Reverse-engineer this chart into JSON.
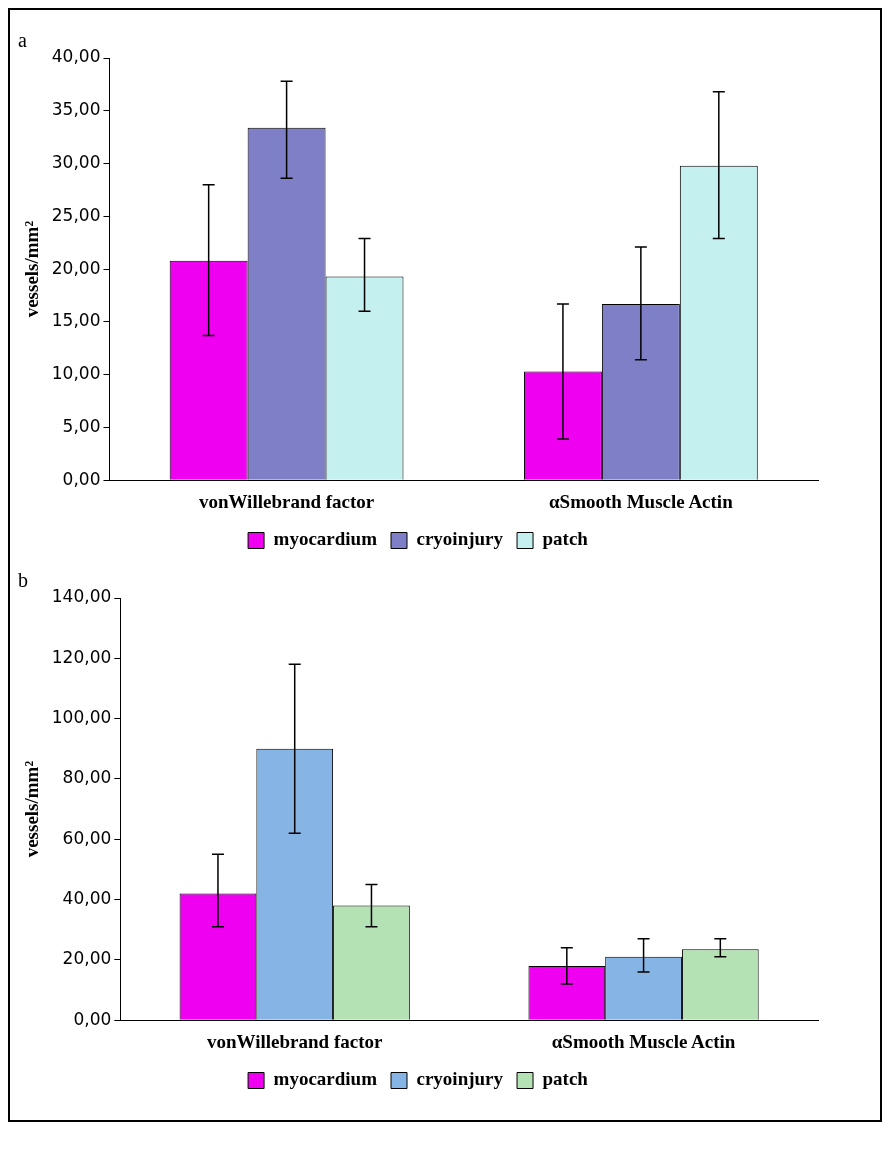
{
  "chart_data": [
    {
      "type": "bar",
      "title": "a",
      "ylabel": "vessels/mm²",
      "categories": [
        "vonWillebrand factor",
        "αSmooth Muscle Actin"
      ],
      "series": [
        {
          "name": "myocardium",
          "color": "#f000f0",
          "values": [
            20.8,
            10.3
          ],
          "errors": [
            [
              13.7,
              28.0
            ],
            [
              3.9,
              16.7
            ]
          ]
        },
        {
          "name": "cryoinjury",
          "color": "#7f7fc8",
          "values": [
            33.4,
            16.7
          ],
          "errors": [
            [
              28.6,
              37.8
            ],
            [
              11.4,
              22.1
            ]
          ]
        },
        {
          "name": "patch",
          "color": "#c4f0f0",
          "values": [
            19.3,
            29.8
          ],
          "errors": [
            [
              16.0,
              22.9
            ],
            [
              22.9,
              36.8
            ]
          ]
        }
      ],
      "ylim": [
        0,
        40
      ],
      "yticks": [
        {
          "value": 0,
          "label": "0,00"
        },
        {
          "value": 5,
          "label": "5,00"
        },
        {
          "value": 10,
          "label": "10,00"
        },
        {
          "value": 15,
          "label": "15,00"
        },
        {
          "value": 20,
          "label": "20,00"
        },
        {
          "value": 25,
          "label": "25,00"
        },
        {
          "value": 30,
          "label": "30,00"
        },
        {
          "value": 35,
          "label": "35,00"
        },
        {
          "value": 40,
          "label": "40,00"
        }
      ],
      "grid": false,
      "legend": "bottom"
    },
    {
      "type": "bar",
      "title": "b",
      "ylabel": "vessels/mm²",
      "categories": [
        "vonWillebrand factor",
        "αSmooth Muscle Actin"
      ],
      "series": [
        {
          "name": "myocardium",
          "color": "#f000f0",
          "values": [
            42,
            18
          ],
          "errors": [
            [
              31,
              55
            ],
            [
              12,
              24
            ]
          ]
        },
        {
          "name": "cryoinjury",
          "color": "#86b4e4",
          "values": [
            90,
            21
          ],
          "errors": [
            [
              62,
              118
            ],
            [
              16,
              27
            ]
          ]
        },
        {
          "name": "patch",
          "color": "#b4e2b4",
          "values": [
            38,
            23.5
          ],
          "errors": [
            [
              31,
              45
            ],
            [
              21,
              27
            ]
          ]
        }
      ],
      "ylim": [
        0,
        140
      ],
      "yticks": [
        {
          "value": 0,
          "label": "0,00"
        },
        {
          "value": 20,
          "label": "20,00"
        },
        {
          "value": 40,
          "label": "40,00"
        },
        {
          "value": 60,
          "label": "60,00"
        },
        {
          "value": 80,
          "label": "80,00"
        },
        {
          "value": 100,
          "label": "100,00"
        },
        {
          "value": 120,
          "label": "120,00"
        },
        {
          "value": 140,
          "label": "140,00"
        }
      ],
      "grid": false,
      "legend": "bottom"
    }
  ]
}
